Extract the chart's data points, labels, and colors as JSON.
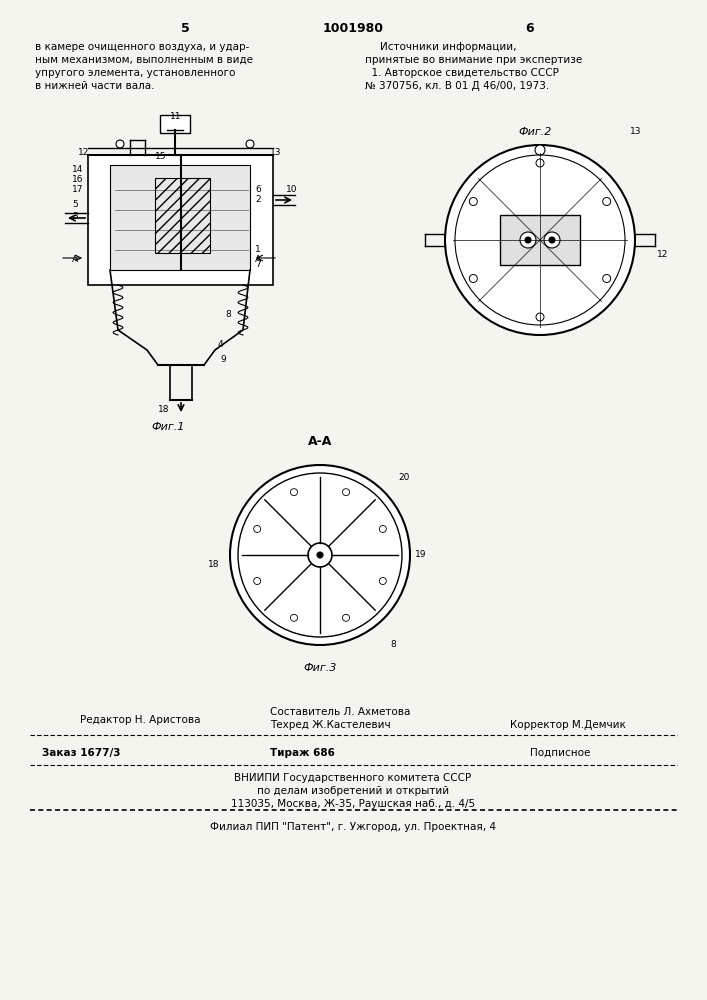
{
  "page_number_left": "5",
  "page_number_center": "1001980",
  "page_number_right": "6",
  "text_left_col": [
    "в камере очищенного воздуха, и удар-",
    "ным механизмом, выполненным в виде",
    "упругого элемента, установленного",
    "в нижней части вала."
  ],
  "text_right_col_title": "Источники информации,",
  "text_right_col": [
    "принятые во внимание при экспертизе",
    "  1. Авторское свидетельство СССР",
    "№ 370756, кл. В 01 Д 46/00, 1973."
  ],
  "fig1_label": "Фиг.1",
  "fig2_label": "Фиг.2",
  "fig3_label": "Фиг.3",
  "section_label": "А-А",
  "footer_line1_left": "Редактор Н. Аристова",
  "footer_line1_center_top": "Составитель Л. Ахметова",
  "footer_line1_center": "Техред Ж.Кастелевич",
  "footer_line1_right": "Корректор М.Демчик",
  "footer_line2_left": "Заказ 1677/3",
  "footer_line2_center": "Тираж 686",
  "footer_line2_right": "Подписное",
  "footer_line3": "ВНИИПИ Государственного комитета СССР",
  "footer_line4": "по делам изобретений и открытий",
  "footer_line5": "113035, Москва, Ж-35, Раушская наб., д. 4/5",
  "footer_dashed_line": "──────────────────────────────────────────────────────────────────",
  "footer_last": "Филиал ПИП \"Патент\", г. Ужгород, ул. Проектная, 4",
  "bg_color": "#f5f5f0"
}
